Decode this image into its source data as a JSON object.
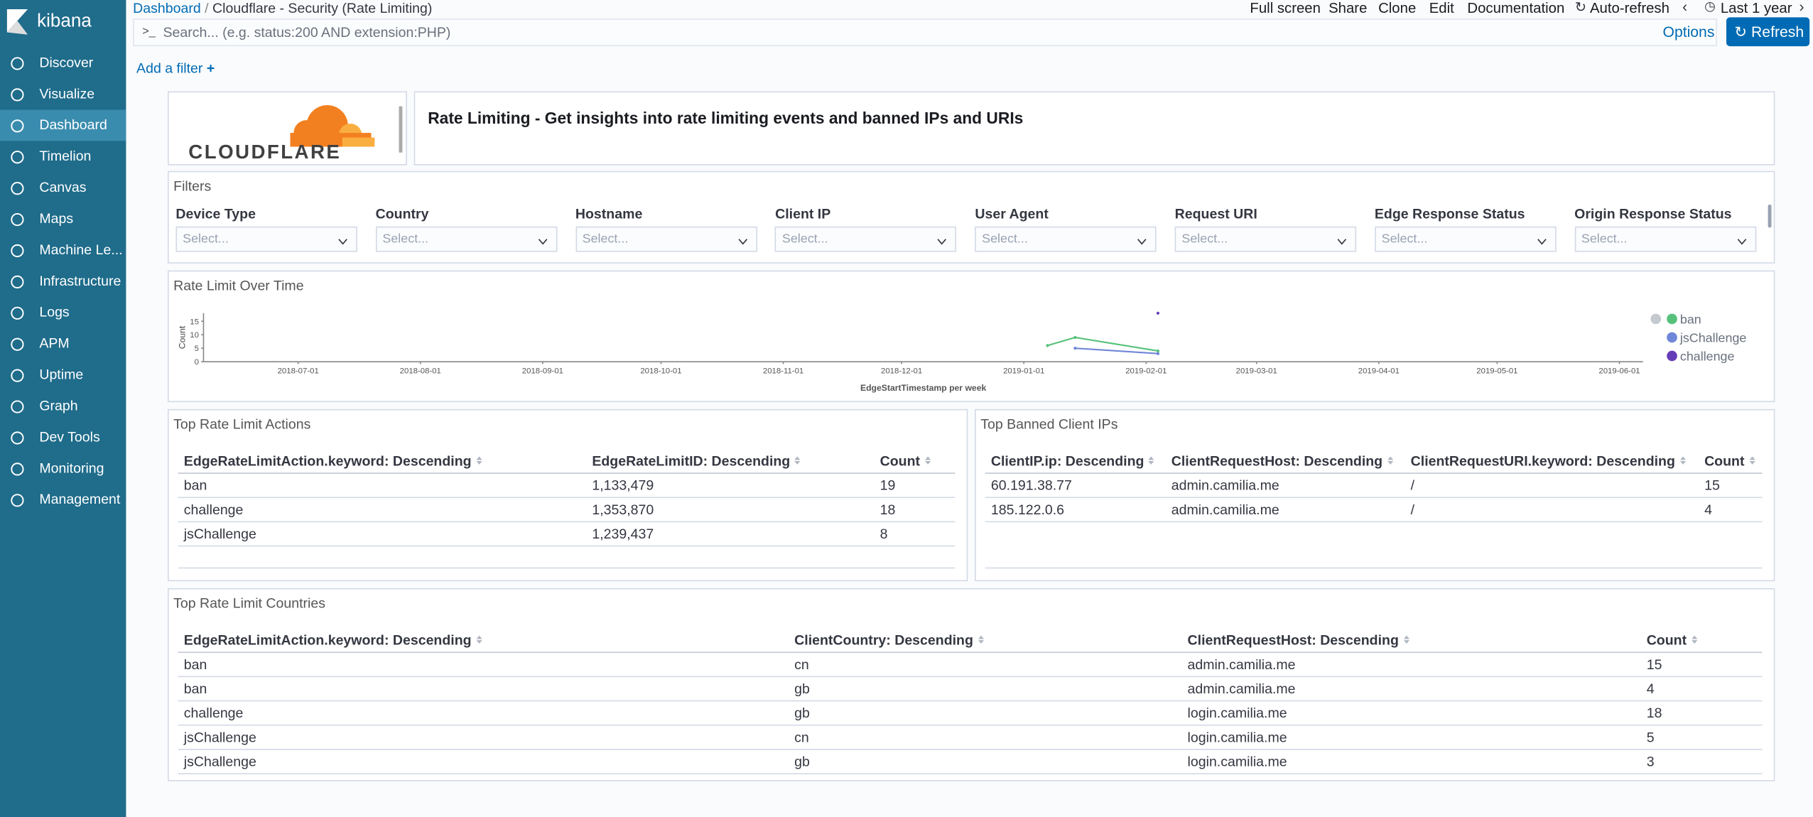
{
  "sidebar": {
    "logo": "kibana",
    "nav": [
      "Discover",
      "Visualize",
      "Dashboard",
      "Timelion",
      "Canvas",
      "Maps",
      "Machine Le...",
      "Infrastructure",
      "Logs",
      "APM",
      "Uptime",
      "Graph",
      "Dev Tools",
      "Monitoring",
      "Management"
    ],
    "active": 2
  },
  "topbar": {
    "breadcrumbs": [
      "Dashboard",
      "Cloudflare - Security (Rate Limiting)"
    ],
    "menu": [
      "Full screen",
      "Share",
      "Clone",
      "Edit",
      "Documentation",
      "Auto-refresh"
    ],
    "time": "Last 1 year"
  },
  "search": {
    "placeholder": "Search... (e.g. status:200 AND extension:PHP)",
    "options": "Options",
    "refresh": "Refresh",
    "add_filter": "Add a filter"
  },
  "header": {
    "logo_text": "CLOUDFLARE",
    "title": "Rate Limiting - Get insights into rate limiting events and banned IPs and URIs"
  },
  "filters": {
    "title": "Filters",
    "placeholder": "Select...",
    "controls": [
      "Device Type",
      "Country",
      "Hostname",
      "Client IP",
      "User Agent",
      "Request URI",
      "Edge Response Status",
      "Origin Response Status"
    ]
  },
  "chart_data": {
    "type": "line",
    "title": "Rate Limit Over Time",
    "x_label": "EdgeStartTimestamp per week",
    "y_label": "Count",
    "x": [
      "2019-01-07",
      "2019-01-14",
      "2019-02-04"
    ],
    "series": [
      {
        "name": "ban",
        "color": "#57c17b",
        "values": [
          6,
          9,
          4
        ]
      },
      {
        "name": "jsChallenge",
        "color": "#6f87d8",
        "values": [
          null,
          5,
          3
        ]
      },
      {
        "name": "challenge",
        "color": "#663db8",
        "values": [
          null,
          null,
          18
        ]
      }
    ],
    "xlim": [
      "2018-06-07",
      "2019-06-07"
    ],
    "xticks": [
      "2018-07-01",
      "2018-08-01",
      "2018-09-01",
      "2018-10-01",
      "2018-11-01",
      "2018-12-01",
      "2019-01-01",
      "2019-02-01",
      "2019-03-01",
      "2019-04-01",
      "2019-05-01",
      "2019-06-01"
    ],
    "ylim": [
      0,
      18
    ],
    "yticks": [
      0,
      5,
      10,
      15
    ],
    "legend": "right"
  },
  "tables": [
    {
      "title": "Top Rate Limit Actions",
      "headers": [
        "EdgeRateLimitAction.keyword: Descending",
        "EdgeRateLimitID: Descending",
        "Count"
      ],
      "rows": [
        [
          "ban",
          "1,133,479",
          "19"
        ],
        [
          "challenge",
          "1,353,870",
          "18"
        ],
        [
          "jsChallenge",
          "1,239,437",
          "8"
        ]
      ]
    },
    {
      "title": "Top Banned Client IPs",
      "headers": [
        "ClientIP.ip: Descending",
        "ClientRequestHost: Descending",
        "ClientRequestURI.keyword: Descending",
        "Count"
      ],
      "rows": [
        [
          "60.191.38.77",
          "admin.camilia.me",
          "/",
          "15"
        ],
        [
          "185.122.0.6",
          "admin.camilia.me",
          "/",
          "4"
        ]
      ]
    },
    {
      "title": "Top Rate Limit Countries",
      "headers": [
        "EdgeRateLimitAction.keyword: Descending",
        "ClientCountry: Descending",
        "ClientRequestHost: Descending",
        "Count"
      ],
      "rows": [
        [
          "ban",
          "cn",
          "admin.camilia.me",
          "15"
        ],
        [
          "ban",
          "gb",
          "admin.camilia.me",
          "4"
        ],
        [
          "challenge",
          "gb",
          "login.camilia.me",
          "18"
        ],
        [
          "jsChallenge",
          "cn",
          "login.camilia.me",
          "5"
        ],
        [
          "jsChallenge",
          "gb",
          "login.camilia.me",
          "3"
        ]
      ]
    }
  ]
}
